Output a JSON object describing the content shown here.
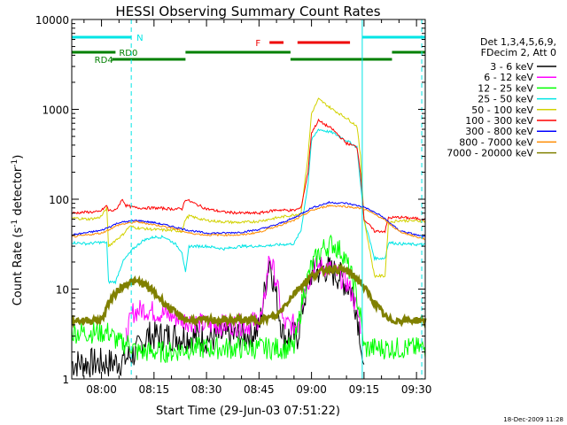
{
  "chart_data": {
    "type": "line",
    "title": "HESSI Observing Summary Count Rates",
    "xlabel": "Start Time (29-Jun-03 07:51:22)",
    "ylabel_main": "Count Rate (s",
    "ylabel_sup1": "-1",
    "ylabel_mid": " detector",
    "ylabel_sup2": "-1",
    "ylabel_end": ")",
    "y_scale": "log",
    "ylim": [
      1,
      10000
    ],
    "xlim_minutes": [
      -8.5,
      92.5
    ],
    "x_ticks": [
      {
        "m": 0,
        "label": "08:00"
      },
      {
        "m": 15,
        "label": "08:15"
      },
      {
        "m": 30,
        "label": "08:30"
      },
      {
        "m": 45,
        "label": "08:45"
      },
      {
        "m": 60,
        "label": "09:00"
      },
      {
        "m": 75,
        "label": "09:15"
      },
      {
        "m": 90,
        "label": "09:30"
      }
    ],
    "y_ticks": [
      {
        "v": 1,
        "label": "1"
      },
      {
        "v": 10,
        "label": "10"
      },
      {
        "v": 100,
        "label": "100"
      },
      {
        "v": 1000,
        "label": "1000"
      },
      {
        "v": 10000,
        "label": "10000"
      }
    ],
    "legend": {
      "position": "right",
      "header": [
        "Det 1,3,4,5,6,9,",
        "FDecim 2, Att 0"
      ]
    },
    "series": [
      {
        "name": "3 - 6 keV",
        "color": "#000000",
        "points": [
          [
            -8.5,
            1.5
          ],
          [
            -3,
            1.5
          ],
          [
            0,
            1.5
          ],
          [
            3,
            1.5
          ],
          [
            6,
            1.6
          ],
          [
            10,
            2
          ],
          [
            13,
            3
          ],
          [
            20,
            3
          ],
          [
            25,
            3
          ],
          [
            30,
            2.8
          ],
          [
            35,
            3
          ],
          [
            40,
            3
          ],
          [
            45,
            3.5
          ],
          [
            48,
            22
          ],
          [
            50,
            8
          ],
          [
            52,
            3
          ],
          [
            56,
            3
          ],
          [
            58,
            8
          ],
          [
            60,
            15
          ],
          [
            64,
            17
          ],
          [
            68,
            14
          ],
          [
            72,
            9
          ],
          [
            74,
            3
          ],
          [
            75,
            1
          ]
        ]
      },
      {
        "name": "6 - 12 keV",
        "color": "#ff00ff",
        "points": [
          [
            7,
            3
          ],
          [
            9,
            5.5
          ],
          [
            12,
            6
          ],
          [
            16,
            5.5
          ],
          [
            20,
            5
          ],
          [
            24,
            4.5
          ],
          [
            30,
            4
          ],
          [
            36,
            4
          ],
          [
            42,
            4
          ],
          [
            46,
            5
          ],
          [
            48,
            24
          ],
          [
            50,
            12
          ],
          [
            52,
            4
          ],
          [
            56,
            4
          ],
          [
            58,
            10
          ],
          [
            61,
            18
          ],
          [
            64,
            18
          ],
          [
            67,
            15
          ],
          [
            70,
            12
          ],
          [
            72,
            8
          ],
          [
            74,
            4
          ]
        ]
      },
      {
        "name": "12 - 25 keV",
        "color": "#00ff00",
        "points": [
          [
            -8.5,
            3.3
          ],
          [
            -2,
            3.3
          ],
          [
            2,
            3.3
          ],
          [
            5,
            2.5
          ],
          [
            8,
            2.5
          ],
          [
            10,
            2
          ],
          [
            15,
            2
          ],
          [
            20,
            2
          ],
          [
            25,
            2.2
          ],
          [
            30,
            2.2
          ],
          [
            35,
            2.2
          ],
          [
            40,
            2.2
          ],
          [
            45,
            2.2
          ],
          [
            50,
            2.2
          ],
          [
            55,
            2.2
          ],
          [
            58,
            10
          ],
          [
            60,
            18
          ],
          [
            63,
            28
          ],
          [
            66,
            32
          ],
          [
            69,
            25
          ],
          [
            72,
            12
          ],
          [
            74,
            5
          ],
          [
            75,
            2.2
          ],
          [
            80,
            2.2
          ],
          [
            85,
            2.2
          ],
          [
            90,
            2.2
          ],
          [
            92.5,
            2.2
          ]
        ]
      },
      {
        "name": "25 - 50 keV",
        "color": "#00e5e5",
        "points": [
          [
            -8.5,
            33
          ],
          [
            -4,
            32
          ],
          [
            -1,
            33
          ],
          [
            0,
            33
          ],
          [
            1.5,
            33
          ],
          [
            2,
            12
          ],
          [
            4,
            12
          ],
          [
            6,
            20
          ],
          [
            9,
            28
          ],
          [
            12,
            35
          ],
          [
            15,
            38
          ],
          [
            18,
            38
          ],
          [
            21,
            32
          ],
          [
            23,
            26
          ],
          [
            24,
            15
          ],
          [
            25,
            30
          ],
          [
            30,
            30
          ],
          [
            35,
            28
          ],
          [
            40,
            30
          ],
          [
            45,
            30
          ],
          [
            50,
            31
          ],
          [
            55,
            32
          ],
          [
            57,
            45
          ],
          [
            59,
            150
          ],
          [
            60,
            450
          ],
          [
            62,
            600
          ],
          [
            66,
            550
          ],
          [
            70,
            450
          ],
          [
            73,
            380
          ],
          [
            74,
            150
          ],
          [
            75,
            60
          ],
          [
            78,
            22
          ],
          [
            81,
            22
          ],
          [
            82,
            33
          ],
          [
            85,
            32
          ],
          [
            92.5,
            31
          ]
        ]
      },
      {
        "name": "50 - 100 keV",
        "color": "#d2d200",
        "points": [
          [
            -8.5,
            62
          ],
          [
            -4,
            60
          ],
          [
            -1,
            62
          ],
          [
            0,
            65
          ],
          [
            1.5,
            80
          ],
          [
            2,
            30
          ],
          [
            4,
            35
          ],
          [
            6,
            40
          ],
          [
            8,
            50
          ],
          [
            10,
            48
          ],
          [
            15,
            46
          ],
          [
            20,
            45
          ],
          [
            23,
            44
          ],
          [
            24,
            60
          ],
          [
            25,
            65
          ],
          [
            30,
            58
          ],
          [
            35,
            56
          ],
          [
            40,
            55
          ],
          [
            45,
            57
          ],
          [
            50,
            62
          ],
          [
            55,
            67
          ],
          [
            57,
            70
          ],
          [
            59,
            300
          ],
          [
            60,
            900
          ],
          [
            62,
            1300
          ],
          [
            66,
            1000
          ],
          [
            70,
            800
          ],
          [
            73,
            650
          ],
          [
            74,
            300
          ],
          [
            75,
            60
          ],
          [
            78,
            14
          ],
          [
            81,
            14
          ],
          [
            82,
            55
          ],
          [
            85,
            58
          ],
          [
            92.5,
            57
          ]
        ]
      },
      {
        "name": "100 - 300 keV",
        "color": "#ff0000",
        "points": [
          [
            -8.5,
            70
          ],
          [
            -4,
            72
          ],
          [
            -1,
            72
          ],
          [
            0,
            75
          ],
          [
            1.5,
            85
          ],
          [
            2,
            75
          ],
          [
            4,
            75
          ],
          [
            6,
            100
          ],
          [
            7,
            85
          ],
          [
            10,
            80
          ],
          [
            15,
            80
          ],
          [
            20,
            78
          ],
          [
            23,
            78
          ],
          [
            24,
            100
          ],
          [
            27,
            88
          ],
          [
            30,
            78
          ],
          [
            35,
            72
          ],
          [
            40,
            70
          ],
          [
            45,
            70
          ],
          [
            50,
            76
          ],
          [
            55,
            75
          ],
          [
            57,
            80
          ],
          [
            59,
            200
          ],
          [
            60,
            550
          ],
          [
            62,
            750
          ],
          [
            66,
            600
          ],
          [
            70,
            420
          ],
          [
            73,
            380
          ],
          [
            74,
            200
          ],
          [
            75,
            60
          ],
          [
            78,
            44
          ],
          [
            81,
            44
          ],
          [
            82,
            62
          ],
          [
            85,
            63
          ],
          [
            92.5,
            60
          ]
        ]
      },
      {
        "name": "300 - 800 keV",
        "color": "#0000ff",
        "points": [
          [
            -8.5,
            40
          ],
          [
            0,
            45
          ],
          [
            5,
            55
          ],
          [
            10,
            58
          ],
          [
            15,
            55
          ],
          [
            20,
            50
          ],
          [
            25,
            45
          ],
          [
            30,
            42
          ],
          [
            35,
            42
          ],
          [
            40,
            43
          ],
          [
            45,
            46
          ],
          [
            50,
            52
          ],
          [
            55,
            62
          ],
          [
            60,
            80
          ],
          [
            65,
            92
          ],
          [
            70,
            90
          ],
          [
            75,
            82
          ],
          [
            80,
            65
          ],
          [
            85,
            45
          ],
          [
            90,
            40
          ],
          [
            92.5,
            38
          ]
        ]
      },
      {
        "name": "800 - 7000 keV",
        "color": "#ff8c00",
        "points": [
          [
            -8.5,
            38
          ],
          [
            0,
            42
          ],
          [
            5,
            52
          ],
          [
            10,
            56
          ],
          [
            15,
            52
          ],
          [
            20,
            48
          ],
          [
            25,
            42
          ],
          [
            30,
            40
          ],
          [
            35,
            40
          ],
          [
            40,
            40
          ],
          [
            45,
            43
          ],
          [
            50,
            50
          ],
          [
            55,
            58
          ],
          [
            60,
            75
          ],
          [
            65,
            85
          ],
          [
            70,
            83
          ],
          [
            75,
            78
          ],
          [
            80,
            62
          ],
          [
            85,
            44
          ],
          [
            90,
            38
          ],
          [
            92.5,
            36
          ]
        ]
      },
      {
        "name": "7000 - 20000 keV",
        "color": "#808000",
        "points": [
          [
            -8.5,
            4.5
          ],
          [
            -4,
            4.5
          ],
          [
            0,
            4.5
          ],
          [
            2,
            7
          ],
          [
            5,
            10
          ],
          [
            8,
            12
          ],
          [
            11,
            12
          ],
          [
            14,
            10
          ],
          [
            18,
            7
          ],
          [
            22,
            5
          ],
          [
            25,
            4.5
          ],
          [
            30,
            4.5
          ],
          [
            35,
            4.5
          ],
          [
            40,
            4.5
          ],
          [
            45,
            4.5
          ],
          [
            50,
            5
          ],
          [
            55,
            9
          ],
          [
            60,
            14
          ],
          [
            65,
            17
          ],
          [
            70,
            16
          ],
          [
            74,
            12
          ],
          [
            78,
            7
          ],
          [
            82,
            4.5
          ],
          [
            86,
            4.5
          ],
          [
            92.5,
            4.5
          ]
        ]
      }
    ],
    "vlines": [
      {
        "m": -8.5,
        "style": "solid",
        "color": "#00e5e5"
      },
      {
        "m": 8.5,
        "style": "dashed",
        "color": "#00e5e5"
      },
      {
        "m": 74.5,
        "style": "solid",
        "color": "#00e5e5"
      },
      {
        "m": 91.5,
        "style": "dashed",
        "color": "#00e5e5"
      }
    ],
    "flag_bars": [
      {
        "label": "N",
        "color": "#00e5e5",
        "y_row": 1,
        "segments": [
          [
            -8.5,
            8.5
          ],
          [
            74.5,
            92.5
          ]
        ],
        "label_at": 10
      },
      {
        "label": "F",
        "color": "#ee0000",
        "y_row": 2,
        "segments": [
          [
            48,
            52
          ],
          [
            56,
            71
          ]
        ],
        "label_at": 44
      },
      {
        "label": "RD0",
        "color": "#008000",
        "y_row": 3,
        "segments": [
          [
            -8.5,
            4
          ],
          [
            24,
            54
          ],
          [
            83,
            92.5
          ]
        ],
        "label_at": 5
      },
      {
        "label": "RD4",
        "color": "#008000",
        "y_row": 4,
        "segments": [
          [
            3,
            24
          ],
          [
            54,
            83
          ]
        ],
        "label_at": -2
      }
    ],
    "timestamp": "18-Dec-2009 11:28"
  }
}
